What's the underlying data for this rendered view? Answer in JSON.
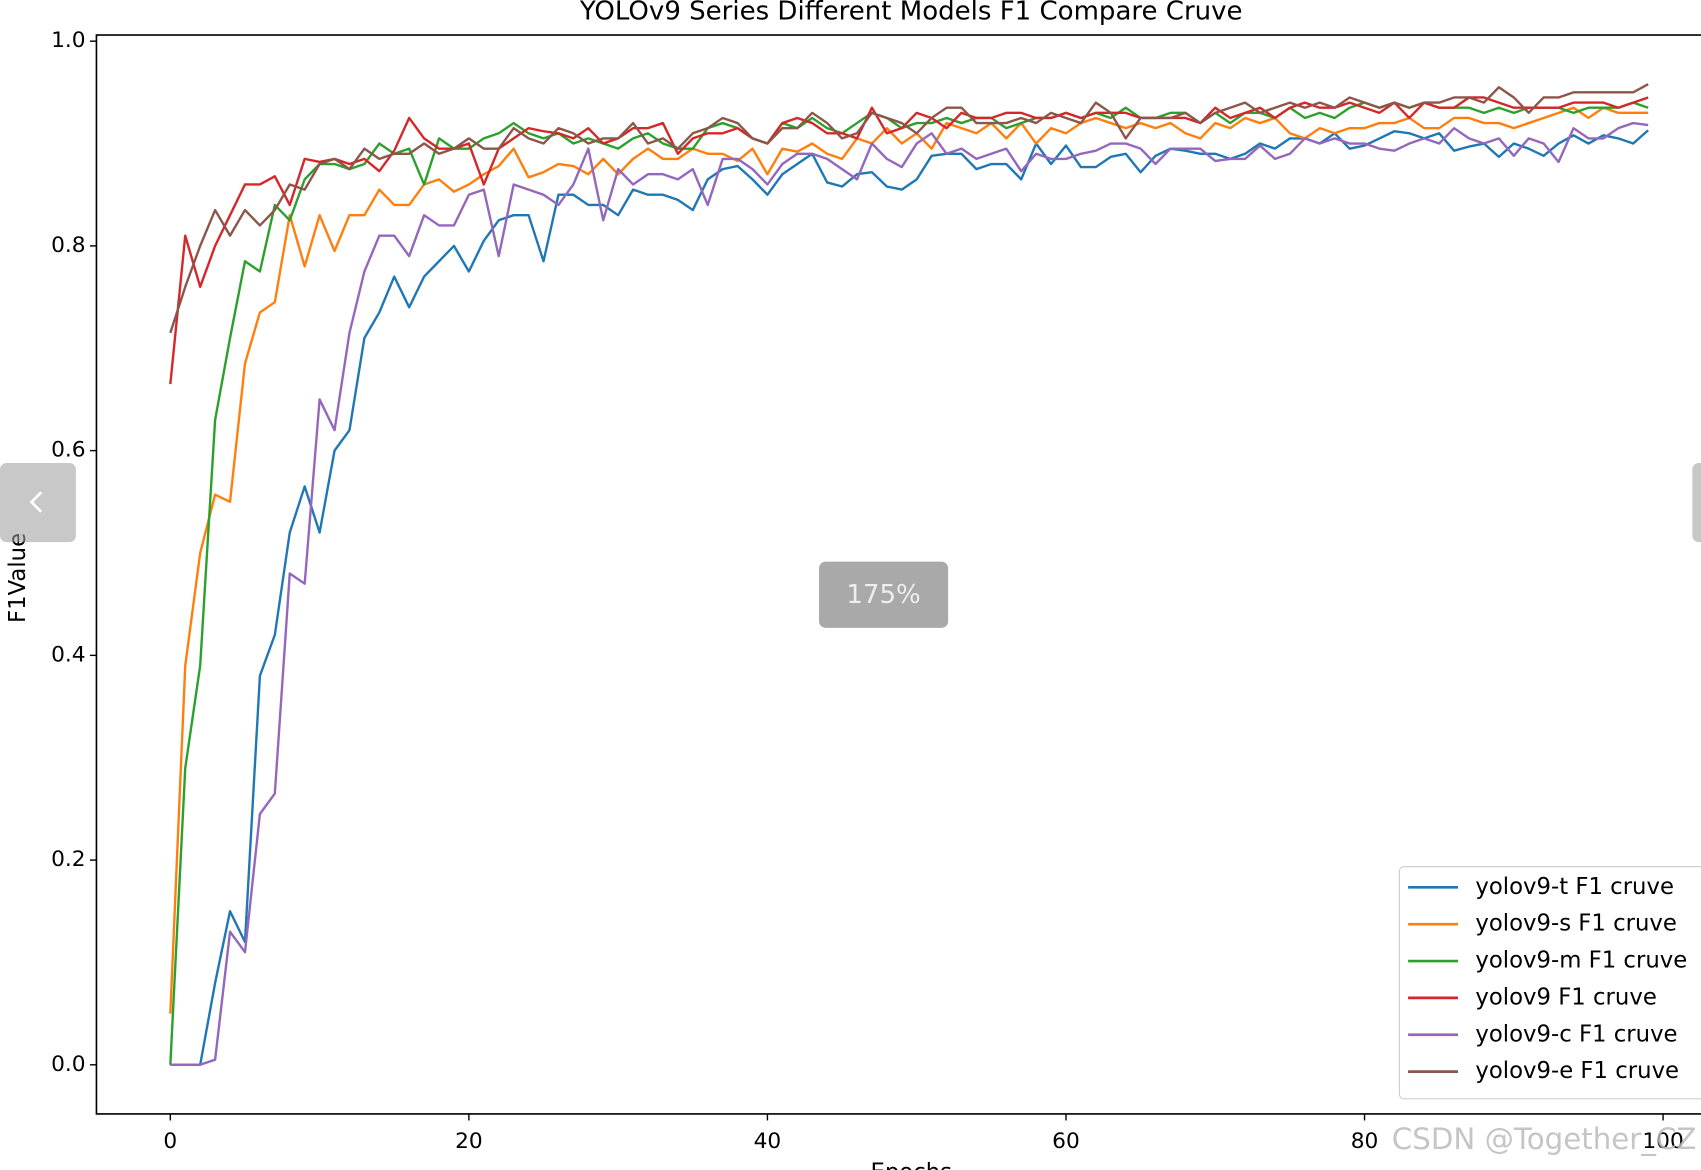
{
  "chart_data": {
    "type": "line",
    "title": "YOLOv9 Series Different Models F1 Compare Cruve",
    "x_label": "Epochs",
    "y_label": "F1Value",
    "x": [
      0,
      1,
      2,
      3,
      4,
      5,
      6,
      7,
      8,
      9,
      10,
      11,
      12,
      13,
      14,
      15,
      16,
      17,
      18,
      19,
      20,
      21,
      22,
      23,
      24,
      25,
      26,
      27,
      28,
      29,
      30,
      31,
      32,
      33,
      34,
      35,
      36,
      37,
      38,
      39,
      40,
      41,
      42,
      43,
      44,
      45,
      46,
      47,
      48,
      49,
      50,
      51,
      52,
      53,
      54,
      55,
      56,
      57,
      58,
      59,
      60,
      61,
      62,
      63,
      64,
      65,
      66,
      67,
      68,
      69,
      70,
      71,
      72,
      73,
      74,
      75,
      76,
      77,
      78,
      79,
      80,
      81,
      82,
      83,
      84,
      85,
      86,
      87,
      88,
      89,
      90,
      91,
      92,
      93,
      94,
      95,
      96,
      97,
      98,
      99
    ],
    "series": [
      {
        "name": "yolov9-t F1 cruve",
        "color": "#1f77b4",
        "values": [
          0,
          0,
          0,
          0.08,
          0.15,
          0.12,
          0.38,
          0.42,
          0.52,
          0.565,
          0.52,
          0.6,
          0.62,
          0.71,
          0.735,
          0.77,
          0.74,
          0.77,
          0.785,
          0.8,
          0.775,
          0.805,
          0.825,
          0.83,
          0.83,
          0.785,
          0.85,
          0.85,
          0.84,
          0.84,
          0.83,
          0.855,
          0.85,
          0.85,
          0.845,
          0.835,
          0.865,
          0.875,
          0.878,
          0.865,
          0.85,
          0.87,
          0.88,
          0.89,
          0.862,
          0.858,
          0.87,
          0.872,
          0.858,
          0.855,
          0.865,
          0.888,
          0.89,
          0.89,
          0.875,
          0.88,
          0.88,
          0.865,
          0.9,
          0.88,
          0.898,
          0.877,
          0.877,
          0.887,
          0.89,
          0.872,
          0.888,
          0.895,
          0.893,
          0.89,
          0.89,
          0.885,
          0.89,
          0.9,
          0.895,
          0.905,
          0.905,
          0.9,
          0.91,
          0.895,
          0.898,
          0.905,
          0.912,
          0.91,
          0.905,
          0.91,
          0.893,
          0.897,
          0.9,
          0.887,
          0.9,
          0.895,
          0.888,
          0.9,
          0.908,
          0.9,
          0.908,
          0.905,
          0.9,
          0.913
        ]
      },
      {
        "name": "yolov9-s F1 cruve",
        "color": "#ff7f0e",
        "values": [
          0.05,
          0.39,
          0.5,
          0.557,
          0.55,
          0.685,
          0.735,
          0.745,
          0.83,
          0.78,
          0.83,
          0.795,
          0.83,
          0.83,
          0.855,
          0.84,
          0.84,
          0.86,
          0.865,
          0.853,
          0.86,
          0.87,
          0.878,
          0.895,
          0.867,
          0.872,
          0.88,
          0.878,
          0.87,
          0.885,
          0.87,
          0.885,
          0.895,
          0.885,
          0.885,
          0.895,
          0.89,
          0.89,
          0.883,
          0.895,
          0.87,
          0.895,
          0.892,
          0.9,
          0.89,
          0.885,
          0.905,
          0.9,
          0.915,
          0.9,
          0.91,
          0.895,
          0.92,
          0.915,
          0.91,
          0.92,
          0.905,
          0.92,
          0.9,
          0.915,
          0.91,
          0.92,
          0.925,
          0.92,
          0.915,
          0.92,
          0.915,
          0.92,
          0.91,
          0.905,
          0.92,
          0.915,
          0.925,
          0.92,
          0.925,
          0.91,
          0.905,
          0.915,
          0.91,
          0.915,
          0.915,
          0.92,
          0.92,
          0.925,
          0.915,
          0.915,
          0.925,
          0.925,
          0.92,
          0.92,
          0.915,
          0.92,
          0.925,
          0.93,
          0.935,
          0.925,
          0.935,
          0.93,
          0.93,
          0.93
        ]
      },
      {
        "name": "yolov9-m F1 cruve",
        "color": "#2ca02c",
        "values": [
          0,
          0.29,
          0.39,
          0.63,
          0.71,
          0.785,
          0.775,
          0.84,
          0.825,
          0.865,
          0.88,
          0.88,
          0.875,
          0.88,
          0.9,
          0.89,
          0.895,
          0.86,
          0.905,
          0.895,
          0.895,
          0.905,
          0.91,
          0.92,
          0.91,
          0.905,
          0.91,
          0.9,
          0.905,
          0.9,
          0.895,
          0.905,
          0.91,
          0.9,
          0.895,
          0.895,
          0.915,
          0.92,
          0.915,
          0.905,
          0.9,
          0.92,
          0.915,
          0.925,
          0.915,
          0.91,
          0.92,
          0.93,
          0.925,
          0.915,
          0.92,
          0.92,
          0.925,
          0.92,
          0.925,
          0.925,
          0.915,
          0.92,
          0.925,
          0.925,
          0.93,
          0.925,
          0.93,
          0.925,
          0.935,
          0.925,
          0.925,
          0.93,
          0.93,
          0.92,
          0.93,
          0.92,
          0.93,
          0.93,
          0.925,
          0.935,
          0.925,
          0.93,
          0.925,
          0.935,
          0.94,
          0.935,
          0.94,
          0.935,
          0.94,
          0.935,
          0.935,
          0.935,
          0.93,
          0.935,
          0.93,
          0.935,
          0.935,
          0.935,
          0.93,
          0.935,
          0.935,
          0.935,
          0.94,
          0.935
        ]
      },
      {
        "name": "yolov9 F1 cruve",
        "color": "#d62728",
        "values": [
          0.665,
          0.81,
          0.76,
          0.8,
          0.83,
          0.86,
          0.86,
          0.868,
          0.84,
          0.885,
          0.882,
          0.885,
          0.88,
          0.885,
          0.873,
          0.893,
          0.925,
          0.905,
          0.895,
          0.895,
          0.9,
          0.86,
          0.895,
          0.905,
          0.915,
          0.912,
          0.91,
          0.905,
          0.915,
          0.9,
          0.905,
          0.915,
          0.915,
          0.92,
          0.89,
          0.905,
          0.91,
          0.91,
          0.915,
          0.905,
          0.9,
          0.92,
          0.925,
          0.92,
          0.91,
          0.91,
          0.905,
          0.935,
          0.91,
          0.915,
          0.93,
          0.925,
          0.915,
          0.93,
          0.925,
          0.925,
          0.93,
          0.93,
          0.925,
          0.925,
          0.93,
          0.925,
          0.93,
          0.93,
          0.93,
          0.925,
          0.925,
          0.925,
          0.925,
          0.92,
          0.935,
          0.925,
          0.93,
          0.935,
          0.925,
          0.935,
          0.94,
          0.935,
          0.935,
          0.94,
          0.935,
          0.93,
          0.94,
          0.925,
          0.94,
          0.935,
          0.935,
          0.945,
          0.945,
          0.94,
          0.935,
          0.935,
          0.935,
          0.935,
          0.94,
          0.94,
          0.94,
          0.935,
          0.94,
          0.945
        ]
      },
      {
        "name": "yolov9-c F1 cruve",
        "color": "#9467bd",
        "values": [
          0,
          0,
          0,
          0.005,
          0.13,
          0.11,
          0.245,
          0.265,
          0.48,
          0.47,
          0.65,
          0.62,
          0.715,
          0.775,
          0.81,
          0.81,
          0.79,
          0.83,
          0.82,
          0.82,
          0.85,
          0.855,
          0.79,
          0.86,
          0.855,
          0.85,
          0.84,
          0.86,
          0.895,
          0.825,
          0.875,
          0.86,
          0.87,
          0.87,
          0.865,
          0.875,
          0.84,
          0.885,
          0.885,
          0.875,
          0.86,
          0.88,
          0.89,
          0.89,
          0.885,
          0.875,
          0.865,
          0.9,
          0.885,
          0.877,
          0.9,
          0.91,
          0.89,
          0.895,
          0.885,
          0.89,
          0.895,
          0.873,
          0.89,
          0.885,
          0.885,
          0.89,
          0.893,
          0.9,
          0.9,
          0.895,
          0.88,
          0.895,
          0.895,
          0.895,
          0.883,
          0.885,
          0.885,
          0.898,
          0.885,
          0.89,
          0.905,
          0.9,
          0.905,
          0.9,
          0.9,
          0.895,
          0.893,
          0.9,
          0.905,
          0.9,
          0.915,
          0.905,
          0.9,
          0.905,
          0.888,
          0.905,
          0.9,
          0.882,
          0.915,
          0.905,
          0.905,
          0.915,
          0.92,
          0.918
        ]
      },
      {
        "name": "yolov9-e F1 cruve",
        "color": "#8c564b",
        "values": [
          0.715,
          0.76,
          0.8,
          0.835,
          0.81,
          0.835,
          0.82,
          0.835,
          0.86,
          0.855,
          0.88,
          0.885,
          0.875,
          0.895,
          0.885,
          0.89,
          0.89,
          0.9,
          0.89,
          0.895,
          0.905,
          0.895,
          0.895,
          0.915,
          0.905,
          0.9,
          0.915,
          0.91,
          0.9,
          0.905,
          0.905,
          0.92,
          0.9,
          0.905,
          0.895,
          0.91,
          0.915,
          0.925,
          0.92,
          0.905,
          0.9,
          0.915,
          0.915,
          0.93,
          0.92,
          0.905,
          0.91,
          0.93,
          0.925,
          0.92,
          0.91,
          0.925,
          0.935,
          0.935,
          0.92,
          0.92,
          0.92,
          0.925,
          0.92,
          0.93,
          0.925,
          0.92,
          0.94,
          0.93,
          0.905,
          0.925,
          0.925,
          0.925,
          0.93,
          0.92,
          0.93,
          0.935,
          0.94,
          0.93,
          0.935,
          0.94,
          0.935,
          0.94,
          0.935,
          0.945,
          0.94,
          0.935,
          0.94,
          0.935,
          0.94,
          0.94,
          0.945,
          0.945,
          0.94,
          0.955,
          0.945,
          0.93,
          0.945,
          0.945,
          0.95,
          0.95,
          0.95,
          0.95,
          0.95,
          0.958
        ]
      }
    ],
    "xlim": [
      -4.95,
      103.95
    ],
    "xticks": [
      0,
      20,
      40,
      60,
      80,
      100
    ],
    "ylim": [
      -0.048,
      1.006
    ],
    "yticks": [
      {
        "value": 0,
        "label": "0.0"
      },
      0.2,
      0.4,
      0.6,
      0.8,
      {
        "value": 1,
        "label": "1.0"
      }
    ],
    "legend": "lower right",
    "grid": false
  },
  "viewer": {
    "zoom_label": "175%",
    "watermark": "CSDN @Together_CZ"
  }
}
